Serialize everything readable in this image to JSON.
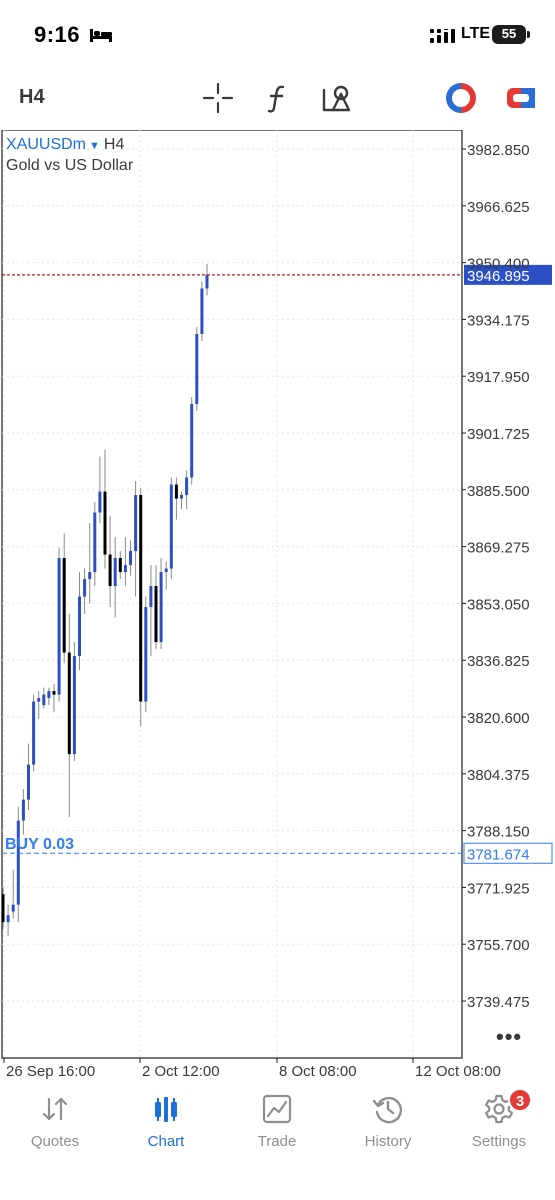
{
  "status_bar": {
    "time": "9:16",
    "network": "LTE",
    "battery": "55"
  },
  "toolbar": {
    "timeframe": "H4",
    "icons": [
      "crosshair-icon",
      "indicators-icon",
      "objects-icon",
      "one-click-trading-icon",
      "trade-icon"
    ]
  },
  "chart": {
    "symbol": "XAUUSDm",
    "timeframe": "H4",
    "description": "Gold vs US Dollar",
    "current_price": "3946.895",
    "buy_label": "BUY 0.03",
    "buy_price": "3781.674",
    "more_label": "•••",
    "colors": {
      "bull": "#2b4fc7",
      "bear": "#000000",
      "bid_line": "#b71c1c",
      "price_box": "#2b4fc7",
      "buy_line": "#2f7cf6",
      "grid": "#e6e6e6"
    }
  },
  "chart_data": {
    "type": "candlestick",
    "title": "Gold vs US Dollar",
    "y_ticks": [
      "3982.850",
      "3966.625",
      "3950.400",
      "3934.175",
      "3917.950",
      "3901.725",
      "3885.500",
      "3869.275",
      "3853.050",
      "3836.825",
      "3820.600",
      "3804.375",
      "3788.150",
      "3771.925",
      "3755.700",
      "3739.475"
    ],
    "x_ticks": [
      "26 Sep 16:00",
      "2 Oct 12:00",
      "8 Oct 08:00",
      "12 Oct 08:00"
    ],
    "ylim": [
      3731,
      3989
    ],
    "current_price": 3946.895,
    "buy_price": 3781.674,
    "candles": [
      {
        "o": 3770,
        "h": 3772,
        "l": 3760,
        "c": 3762
      },
      {
        "o": 3762,
        "h": 3767,
        "l": 3758,
        "c": 3764
      },
      {
        "o": 3765,
        "h": 3777,
        "l": 3763,
        "c": 3767
      },
      {
        "o": 3767,
        "h": 3795,
        "l": 3762,
        "c": 3791
      },
      {
        "o": 3791,
        "h": 3800,
        "l": 3787,
        "c": 3797
      },
      {
        "o": 3797,
        "h": 3813,
        "l": 3794,
        "c": 3807
      },
      {
        "o": 3807,
        "h": 3827,
        "l": 3805,
        "c": 3825
      },
      {
        "o": 3825,
        "h": 3828,
        "l": 3820,
        "c": 3826
      },
      {
        "o": 3824,
        "h": 3829,
        "l": 3823,
        "c": 3827
      },
      {
        "o": 3826,
        "h": 3829,
        "l": 3824,
        "c": 3828
      },
      {
        "o": 3828,
        "h": 3830,
        "l": 3822,
        "c": 3827
      },
      {
        "o": 3827,
        "h": 3869,
        "l": 3825,
        "c": 3866
      },
      {
        "o": 3866,
        "h": 3873,
        "l": 3836,
        "c": 3839
      },
      {
        "o": 3839,
        "h": 3850,
        "l": 3792,
        "c": 3810
      },
      {
        "o": 3810,
        "h": 3842,
        "l": 3808,
        "c": 3838
      },
      {
        "o": 3838,
        "h": 3862,
        "l": 3834,
        "c": 3855
      },
      {
        "o": 3855,
        "h": 3863,
        "l": 3850,
        "c": 3860
      },
      {
        "o": 3860,
        "h": 3876,
        "l": 3853,
        "c": 3862
      },
      {
        "o": 3862,
        "h": 3882,
        "l": 3858,
        "c": 3879
      },
      {
        "o": 3879,
        "h": 3895,
        "l": 3876,
        "c": 3885
      },
      {
        "o": 3885,
        "h": 3897,
        "l": 3863,
        "c": 3867
      },
      {
        "o": 3867,
        "h": 3878,
        "l": 3852,
        "c": 3858
      },
      {
        "o": 3858,
        "h": 3872,
        "l": 3849,
        "c": 3866
      },
      {
        "o": 3866,
        "h": 3868,
        "l": 3860,
        "c": 3862
      },
      {
        "o": 3862,
        "h": 3872,
        "l": 3858,
        "c": 3864
      },
      {
        "o": 3864,
        "h": 3871,
        "l": 3861,
        "c": 3868
      },
      {
        "o": 3868,
        "h": 3888,
        "l": 3855,
        "c": 3884
      },
      {
        "o": 3884,
        "h": 3886,
        "l": 3818,
        "c": 3825
      },
      {
        "o": 3825,
        "h": 3855,
        "l": 3822,
        "c": 3852
      },
      {
        "o": 3852,
        "h": 3864,
        "l": 3838,
        "c": 3858
      },
      {
        "o": 3858,
        "h": 3864,
        "l": 3840,
        "c": 3842
      },
      {
        "o": 3842,
        "h": 3866,
        "l": 3840,
        "c": 3862
      },
      {
        "o": 3862,
        "h": 3865,
        "l": 3857,
        "c": 3863
      },
      {
        "o": 3863,
        "h": 3889,
        "l": 3860,
        "c": 3887
      },
      {
        "o": 3887,
        "h": 3889,
        "l": 3877,
        "c": 3883
      },
      {
        "o": 3883,
        "h": 3885,
        "l": 3880,
        "c": 3884
      },
      {
        "o": 3884,
        "h": 3891,
        "l": 3880,
        "c": 3889
      },
      {
        "o": 3889,
        "h": 3912,
        "l": 3887,
        "c": 3910
      },
      {
        "o": 3910,
        "h": 3932,
        "l": 3908,
        "c": 3930
      },
      {
        "o": 3930,
        "h": 3945,
        "l": 3928,
        "c": 3943
      },
      {
        "o": 3943,
        "h": 3950,
        "l": 3941,
        "c": 3946.9
      }
    ]
  },
  "bottom_nav": {
    "items": [
      {
        "label": "Quotes",
        "icon": "quotes-arrows-icon"
      },
      {
        "label": "Chart",
        "icon": "chart-candles-icon"
      },
      {
        "label": "Trade",
        "icon": "trade-chart-icon"
      },
      {
        "label": "History",
        "icon": "history-clock-icon"
      },
      {
        "label": "Settings",
        "icon": "settings-gear-icon"
      }
    ],
    "settings_badge": "3"
  }
}
